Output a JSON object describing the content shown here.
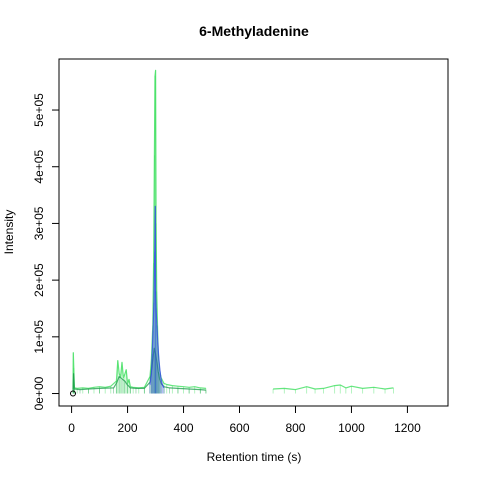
{
  "chart_data": {
    "type": "line",
    "title": "6-Methyladenine",
    "xlabel": "Retention time (s)",
    "ylabel": "Intensity",
    "xlim": [
      -45,
      1345
    ],
    "ylim": [
      -22000,
      590000
    ],
    "xticks": [
      0,
      200,
      400,
      600,
      800,
      1000,
      1200
    ],
    "xtick_labels": [
      "0",
      "200",
      "400",
      "600",
      "800",
      "1000",
      "1200"
    ],
    "yticks": [
      0,
      100000,
      200000,
      300000,
      400000,
      500000
    ],
    "ytick_labels": [
      "0e+00",
      "1e+05",
      "2e+05",
      "3e+05",
      "4e+05",
      "5e+05"
    ],
    "grid": false,
    "legend": "none",
    "colors": {
      "series_green": "#33dd55",
      "series_dark_green": "#1a9a4a",
      "series_blue": "#3344ee",
      "axis": "#000000"
    },
    "series": [
      {
        "color": "#33dd55",
        "x": [
          5,
          6,
          8,
          10,
          20,
          40,
          60,
          80,
          100,
          120,
          140,
          160,
          165,
          170,
          175,
          180,
          185,
          190,
          195,
          200,
          205,
          210,
          220,
          240,
          260,
          280,
          285,
          290,
          293,
          296,
          298,
          300,
          302,
          304,
          307,
          310,
          315,
          320,
          330,
          340,
          360,
          380,
          400,
          420,
          440,
          460,
          480
        ],
        "y": [
          8000,
          72000,
          45000,
          10000,
          9000,
          10000,
          9000,
          11000,
          12000,
          11000,
          13000,
          22000,
          58000,
          35000,
          30000,
          55000,
          28000,
          34000,
          42000,
          18000,
          25000,
          12000,
          11000,
          10000,
          11000,
          30000,
          60000,
          120000,
          230000,
          420000,
          560000,
          570000,
          300000,
          180000,
          120000,
          70000,
          40000,
          28000,
          18000,
          16000,
          14000,
          13000,
          12000,
          11000,
          12000,
          10000,
          9000
        ]
      },
      {
        "color": "#1a9a4a",
        "x": [
          5,
          7,
          10,
          30,
          60,
          100,
          150,
          160,
          170,
          180,
          190,
          200,
          210,
          230,
          260,
          280,
          285,
          290,
          295,
          300,
          305,
          310,
          315,
          320,
          330,
          350,
          380,
          420,
          460,
          480
        ],
        "y": [
          5000,
          35000,
          8000,
          7000,
          8000,
          9000,
          10000,
          18000,
          30000,
          26000,
          22000,
          15000,
          10000,
          9000,
          9000,
          20000,
          40000,
          60000,
          80000,
          70000,
          55000,
          38000,
          25000,
          18000,
          12000,
          10000,
          9000,
          8000,
          7000,
          6000
        ]
      },
      {
        "color": "#3344ee",
        "x": [
          280,
          285,
          288,
          291,
          294,
          297,
          299,
          300,
          302,
          305,
          308,
          312,
          316,
          320,
          325,
          330
        ],
        "y": [
          15000,
          35000,
          70000,
          110000,
          160000,
          250000,
          330000,
          180000,
          150000,
          120000,
          90000,
          60000,
          40000,
          25000,
          15000,
          10000
        ]
      },
      {
        "color": "#33dd55",
        "x": [
          720,
          760,
          800,
          840,
          870,
          900,
          940,
          960,
          980,
          1000,
          1040,
          1080,
          1120,
          1150
        ],
        "y": [
          8000,
          9000,
          7000,
          12000,
          8000,
          9000,
          14000,
          15000,
          10000,
          13000,
          9000,
          11000,
          8000,
          10000
        ]
      }
    ],
    "points": [
      {
        "x": 5,
        "y": 0
      }
    ]
  }
}
